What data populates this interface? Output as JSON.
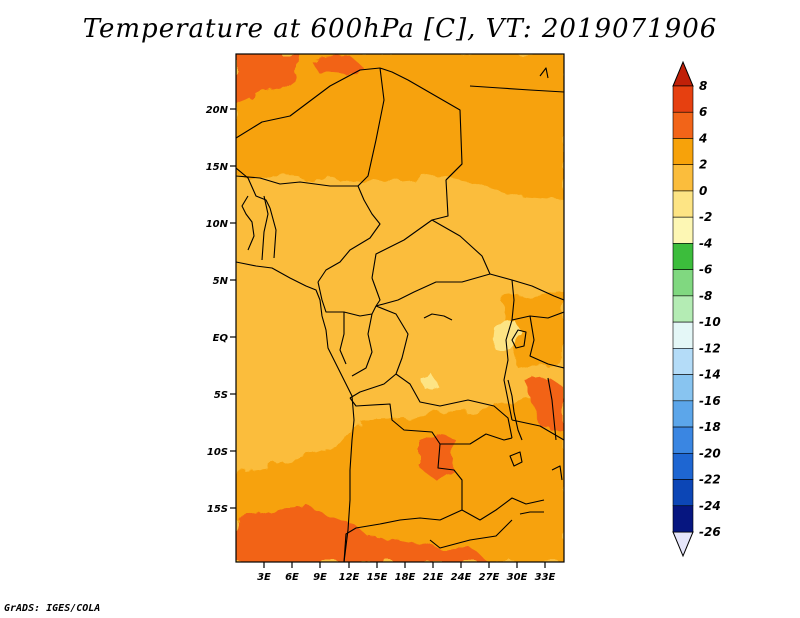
{
  "title": "Temperature at 600hPa [C], VT: 2019071906",
  "credit": "GrADS: IGES/COLA",
  "map": {
    "lat_labels": [
      "20N",
      "15N",
      "10N",
      "5N",
      "EQ",
      "5S",
      "10S",
      "15S"
    ],
    "lon_labels": [
      "3E",
      "6E",
      "9E",
      "12E",
      "15E",
      "18E",
      "21E",
      "24E",
      "27E",
      "30E",
      "33E"
    ]
  },
  "colorbar": {
    "labels": [
      "8",
      "6",
      "4",
      "2",
      "0",
      "-2",
      "-4",
      "-6",
      "-8",
      "-10",
      "-12",
      "-14",
      "-16",
      "-18",
      "-20",
      "-22",
      "-24",
      "-26"
    ],
    "colors": [
      "#c02008",
      "#e64010",
      "#f26418",
      "#f7a20a",
      "#fbbd3c",
      "#fde484",
      "#fdf7b4",
      "#3cbd3c",
      "#80d880",
      "#b4ecb4",
      "#e4f7f7",
      "#b4dcf8",
      "#88c4f0",
      "#5ca6ea",
      "#3a86e2",
      "#1e66d2",
      "#0c46b6",
      "#061680",
      "#000664"
    ],
    "top_arrow_color": "#c02008",
    "bottom_arrow_color": "#e6e6fa"
  }
}
